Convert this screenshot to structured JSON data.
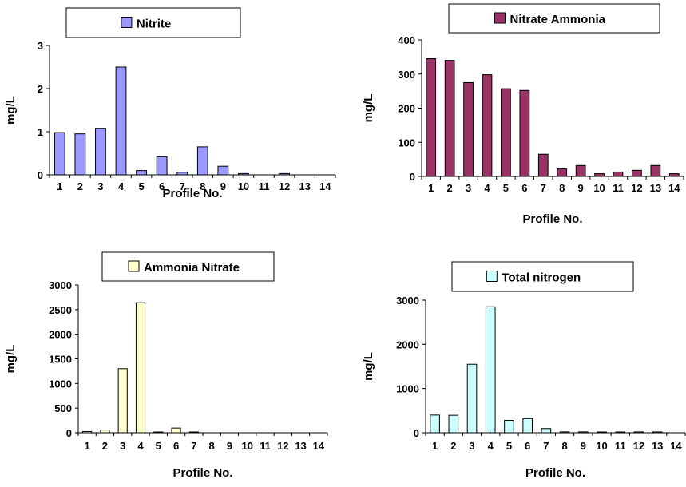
{
  "chart_data": [
    {
      "type": "bar",
      "legend": "Nitrite",
      "xlabel": "Profile No.",
      "ylabel": "mg/L",
      "ylim": [
        0,
        3
      ],
      "yticks": [
        "0",
        "1",
        "2",
        "3"
      ],
      "categories": [
        "1",
        "2",
        "3",
        "4",
        "5",
        "6",
        "7",
        "8",
        "9",
        "10",
        "11",
        "12",
        "13",
        "14"
      ],
      "values": [
        0.98,
        0.95,
        1.08,
        2.5,
        0.1,
        0.42,
        0.06,
        0.65,
        0.2,
        0.03,
        0,
        0.03,
        0,
        0
      ],
      "color": "#9999ff",
      "legend_position": "top-center"
    },
    {
      "type": "bar",
      "legend": "Nitrate Ammonia",
      "xlabel": "Profile No.",
      "ylabel": "mg/L",
      "ylim": [
        0,
        400
      ],
      "yticks": [
        "0",
        "100",
        "200",
        "300",
        "400"
      ],
      "categories": [
        "1",
        "2",
        "3",
        "4",
        "5",
        "6",
        "7",
        "8",
        "9",
        "10",
        "11",
        "12",
        "13",
        "14"
      ],
      "values": [
        345,
        340,
        275,
        298,
        257,
        252,
        65,
        22,
        32,
        8,
        13,
        18,
        32,
        8
      ],
      "color": "#993366",
      "legend_position": "top-center"
    },
    {
      "type": "bar",
      "legend": "Ammonia Nitrate",
      "xlabel": "Profile No.",
      "ylabel": "mg/L",
      "ylim": [
        0,
        3000
      ],
      "yticks": [
        "0",
        "500",
        "1000",
        "1500",
        "2000",
        "2500",
        "3000"
      ],
      "categories": [
        "1",
        "2",
        "3",
        "4",
        "5",
        "6",
        "7",
        "8",
        "9",
        "10",
        "11",
        "12",
        "13",
        "14"
      ],
      "tick_labels": [
        "1",
        "2",
        "3",
        "4",
        "5",
        "6",
        "7",
        "8",
        "9",
        "10",
        "11",
        "12",
        "13",
        "14"
      ],
      "values": [
        25,
        55,
        1300,
        2640,
        15,
        95,
        15,
        0,
        0,
        0,
        0,
        0,
        0,
        0
      ],
      "color": "#ffffcc",
      "legend_position": "top-center"
    },
    {
      "type": "bar",
      "legend": "Total nitrogen",
      "xlabel": "Profile No.",
      "ylabel": "mg/L",
      "ylim": [
        0,
        3000
      ],
      "yticks": [
        "0",
        "1000",
        "2000",
        "3000"
      ],
      "categories": [
        "1",
        "2",
        "3",
        "4",
        "5",
        "6",
        "7",
        "8",
        "9",
        "10",
        "11",
        "12",
        "13",
        "14"
      ],
      "values": [
        400,
        395,
        1550,
        2850,
        280,
        320,
        95,
        20,
        20,
        15,
        15,
        20,
        20,
        0
      ],
      "color": "#ccffff",
      "legend_position": "top-center"
    }
  ]
}
